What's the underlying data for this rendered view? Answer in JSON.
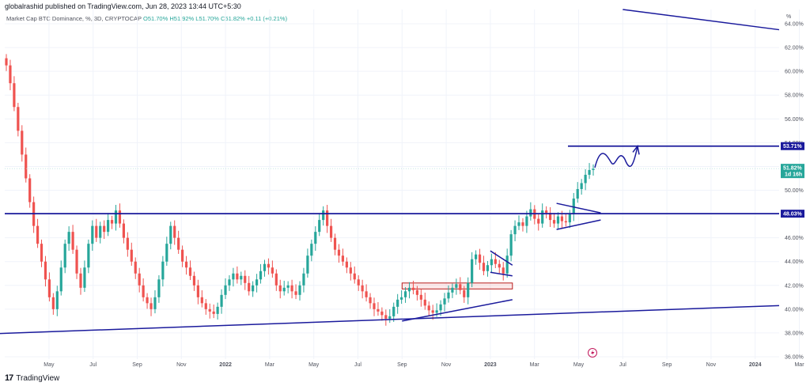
{
  "publisher": "globalrashid published on TradingView.com, Jun 28, 2023 13:44 UTC+5:30",
  "legend": {
    "symbol": "Market Cap BTC Dominance, %, 3D, CRYPTOCAP",
    "ohlc": "O51.70% H51.92% L51.70% C51.82% +0.11 (+0.21%)"
  },
  "footer": {
    "logo": "17",
    "brand": "TradingView"
  },
  "colors": {
    "up": "#26a69a",
    "down": "#ef5350",
    "drawing": "#1a1a9c",
    "current": "#26a69a",
    "grid": "#f0f3fa"
  },
  "chart_data": {
    "type": "candlestick",
    "ylabel": "%",
    "ylim": [
      35.8,
      65.2
    ],
    "yticks": [
      "64.00%",
      "62.00%",
      "60.00%",
      "58.00%",
      "56.00%",
      "54.00%",
      "52.00%",
      "50.00%",
      "48.00%",
      "46.00%",
      "44.00%",
      "42.00%",
      "40.00%",
      "38.00%",
      "36.00%"
    ],
    "xticks": [
      "May",
      "Jul",
      "Sep",
      "Nov",
      "2022",
      "Mar",
      "May",
      "Jul",
      "Sep",
      "Nov",
      "2023",
      "Mar",
      "May",
      "Jul",
      "Sep",
      "Nov",
      "2024",
      "Mar"
    ],
    "series_close": [
      60.5,
      59.0,
      57.0,
      55.0,
      53.0,
      51.0,
      49.0,
      47.0,
      45.5,
      44.0,
      42.5,
      41.0,
      40.0,
      41.5,
      43.5,
      45.5,
      46.5,
      45.0,
      43.0,
      41.8,
      43.5,
      45.5,
      47.0,
      46.0,
      47.0,
      46.5,
      47.5,
      47.2,
      48.3,
      47.2,
      46.0,
      45.0,
      44.0,
      43.0,
      42.0,
      41.0,
      40.5,
      40.0,
      41.0,
      42.5,
      44.0,
      45.5,
      47.0,
      46.0,
      45.0,
      44.0,
      43.5,
      42.8,
      42.0,
      41.0,
      40.5,
      40.0,
      39.8,
      39.6,
      40.2,
      41.2,
      42.0,
      42.5,
      43.0,
      42.5,
      42.8,
      42.2,
      41.5,
      42.0,
      42.5,
      43.2,
      43.8,
      43.5,
      43.0,
      42.0,
      41.5,
      41.8,
      42.0,
      41.5,
      41.2,
      42.0,
      43.0,
      44.5,
      45.5,
      46.5,
      47.5,
      48.3,
      47.0,
      46.0,
      45.0,
      44.5,
      44.0,
      43.5,
      43.0,
      42.5,
      42.0,
      41.5,
      41.0,
      40.5,
      40.0,
      39.8,
      39.5,
      39.2,
      39.4,
      40.2,
      40.8,
      41.0,
      41.5,
      41.8,
      41.6,
      41.2,
      40.8,
      40.3,
      39.9,
      39.7,
      39.9,
      40.4,
      40.9,
      41.4,
      41.8,
      42.1,
      41.6,
      41.0,
      42.2,
      44.2,
      44.6,
      43.9,
      43.2,
      43.7,
      44.2,
      43.8,
      43.5,
      43.0,
      44.5,
      46.3,
      47.0,
      47.3,
      47.0,
      47.8,
      48.4,
      47.6,
      47.2,
      48.3,
      48.1,
      47.5,
      47.2,
      47.8,
      47.4,
      47.3,
      48.0,
      49.3,
      50.1,
      50.6,
      51.3,
      51.7,
      51.82
    ],
    "current_value": "51.82%",
    "current_sub": "1d 16h",
    "levels": [
      {
        "value": 53.71,
        "label": "53.71%"
      },
      {
        "value": 48.03,
        "label": "48.03%"
      }
    ],
    "trendlines": [
      {
        "from": [
          "Feb 2021",
          37.9
        ],
        "to": [
          "Apr 2024",
          40.3
        ]
      },
      {
        "from": [
          "Jul 2023",
          65.2
        ],
        "to": [
          "Apr 2024",
          63.5
        ]
      },
      {
        "from": [
          "Sep 2022",
          39.0
        ],
        "to": [
          "Feb 2023",
          40.8
        ]
      },
      {
        "from": [
          "Jan 2023",
          44.9
        ],
        "to": [
          "Feb 2023",
          43.7
        ]
      },
      {
        "from": [
          "Jan 2023",
          43.1
        ],
        "to": [
          "Feb 2023",
          42.8
        ]
      },
      {
        "from": [
          "Apr 2023",
          48.9
        ],
        "to": [
          "Jun 2023",
          48.1
        ]
      },
      {
        "from": [
          "Apr 2023",
          46.7
        ],
        "to": [
          "Jun 2023",
          47.5
        ]
      }
    ],
    "zone": {
      "from": "Sep 2022",
      "to": "Feb 2023",
      "top": 42.2,
      "bottom": 41.7
    },
    "projection": "wave from 51.8% toward 53.71% ending near Aug 2023"
  }
}
